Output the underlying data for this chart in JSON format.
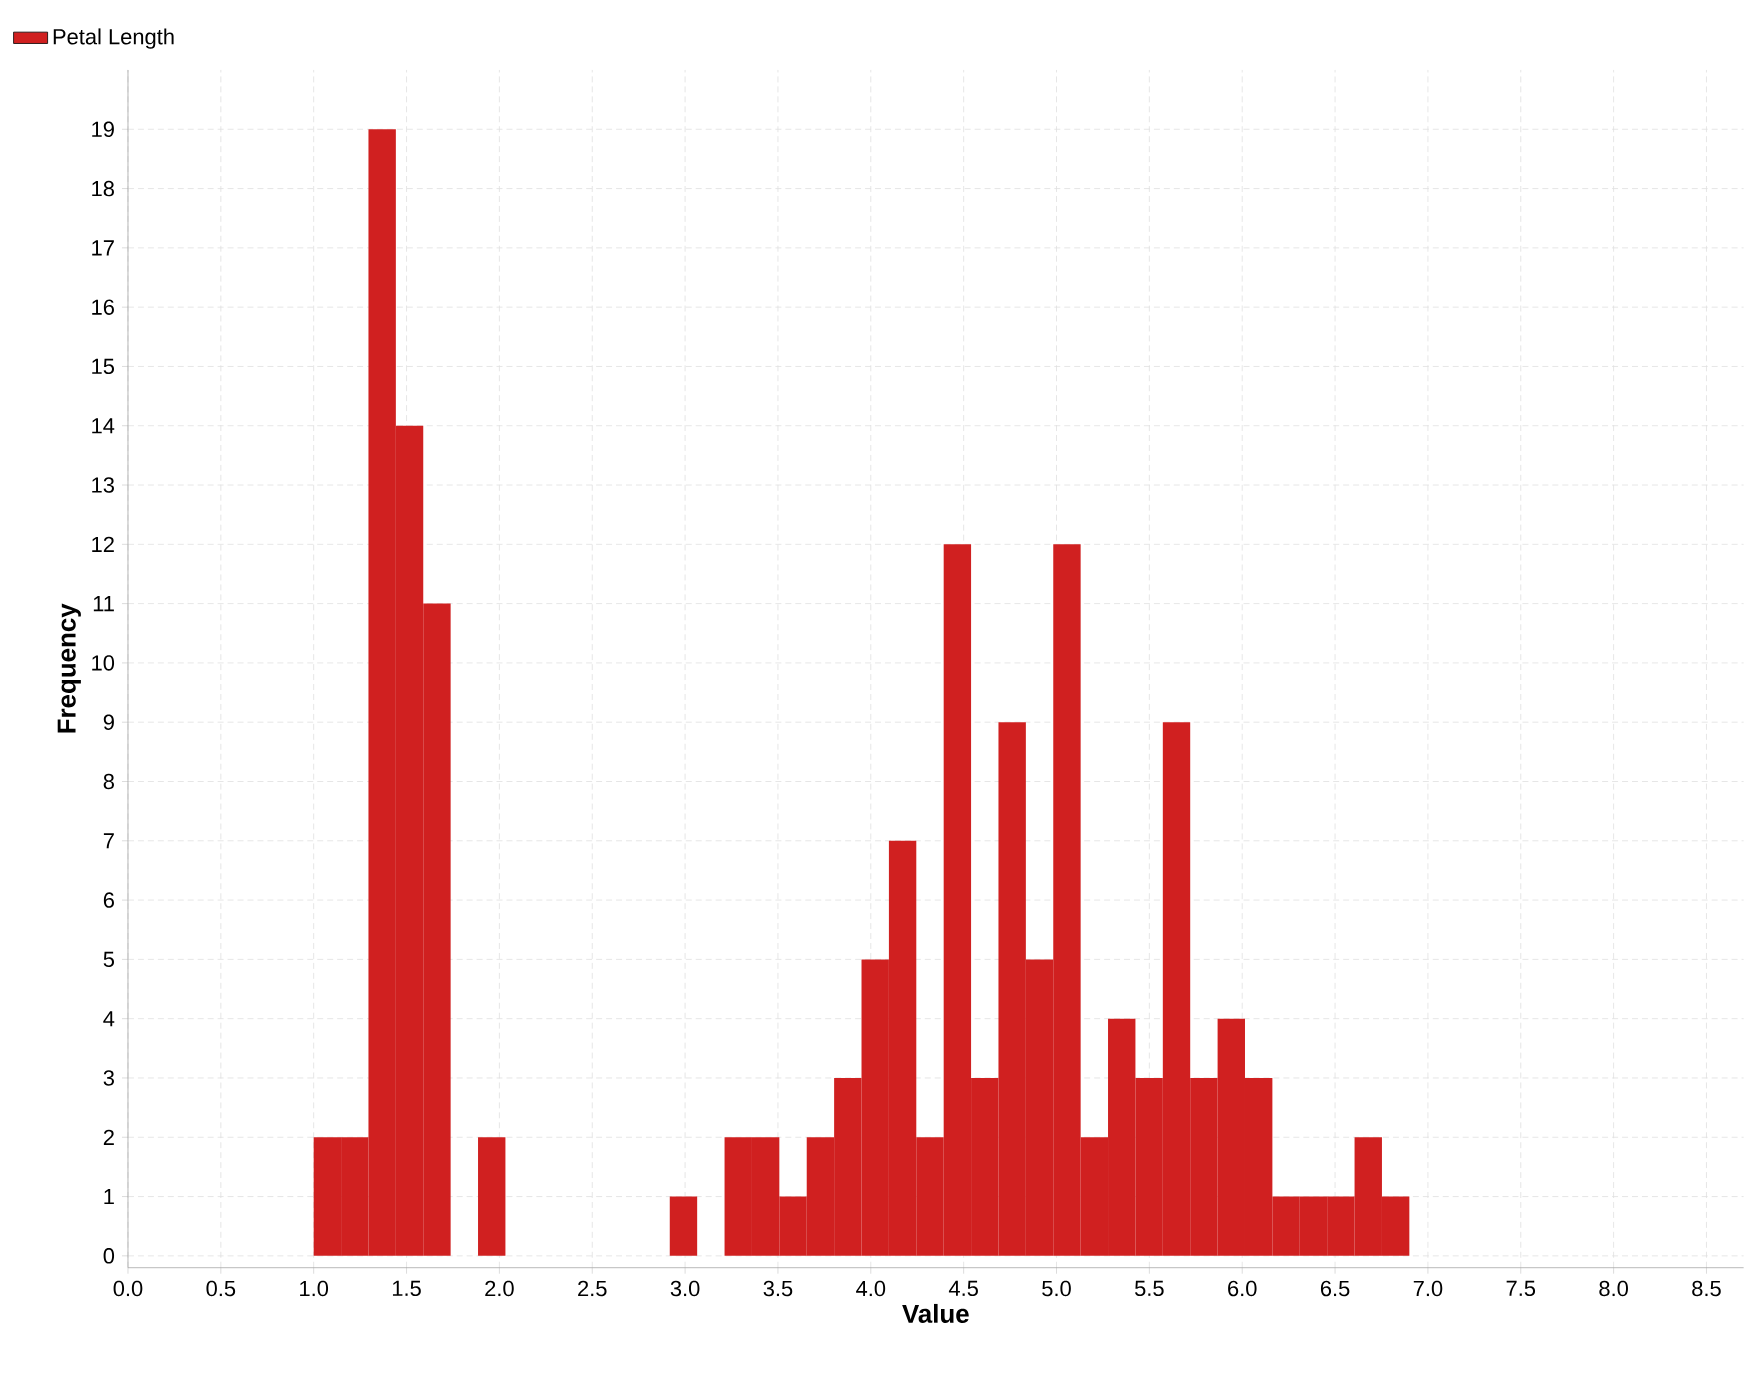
{
  "chart_data": {
    "type": "histogram",
    "xlabel": "Value",
    "ylabel": "Frequency",
    "bins": [
      1.0,
      1.1475,
      1.295,
      1.4425,
      1.59,
      1.7375,
      1.885,
      2.0325,
      2.18,
      2.3275,
      2.475,
      2.6225,
      2.77,
      2.9175,
      3.065,
      3.2125,
      3.36,
      3.5075,
      3.655,
      3.8025,
      3.95,
      4.0975,
      4.245,
      4.3925,
      4.54,
      4.6875,
      4.835,
      4.9825,
      5.13,
      5.2775,
      5.425,
      5.5725,
      5.72,
      5.8675,
      6.015,
      6.1625,
      6.31,
      6.4575,
      6.605,
      6.7525,
      6.9
    ],
    "series": [
      {
        "name": "Petal Length",
        "color": "#d02020",
        "values": [
          2,
          2,
          19,
          14,
          11,
          0,
          2,
          0,
          0,
          0,
          0,
          0,
          0,
          1,
          0,
          2,
          2,
          1,
          2,
          3,
          5,
          7,
          2,
          12,
          3,
          9,
          5,
          12,
          2,
          4,
          3,
          9,
          3,
          4,
          3,
          1,
          1,
          1,
          2,
          1
        ]
      }
    ],
    "xlim": [
      0,
      8.7
    ],
    "ylim": [
      -0.2,
      20
    ],
    "xticks": [
      {
        "value": 0,
        "label": "0.0"
      },
      {
        "value": 0.5,
        "label": "0.5"
      },
      {
        "value": 1,
        "label": "1.0"
      },
      {
        "value": 1.5,
        "label": "1.5"
      },
      {
        "value": 2,
        "label": "2.0"
      },
      {
        "value": 2.5,
        "label": "2.5"
      },
      {
        "value": 3,
        "label": "3.0"
      },
      {
        "value": 3.5,
        "label": "3.5"
      },
      {
        "value": 4,
        "label": "4.0"
      },
      {
        "value": 4.5,
        "label": "4.5"
      },
      {
        "value": 5,
        "label": "5.0"
      },
      {
        "value": 5.5,
        "label": "5.5"
      },
      {
        "value": 6,
        "label": "6.0"
      },
      {
        "value": 6.5,
        "label": "6.5"
      },
      {
        "value": 7,
        "label": "7.0"
      },
      {
        "value": 7.5,
        "label": "7.5"
      },
      {
        "value": 8,
        "label": "8.0"
      },
      {
        "value": 8.5,
        "label": "8.5"
      }
    ],
    "yticks": [
      0,
      1,
      2,
      3,
      4,
      5,
      6,
      7,
      8,
      9,
      10,
      11,
      12,
      13,
      14,
      15,
      16,
      17,
      18,
      19
    ],
    "grid": true,
    "legend": "top left"
  }
}
